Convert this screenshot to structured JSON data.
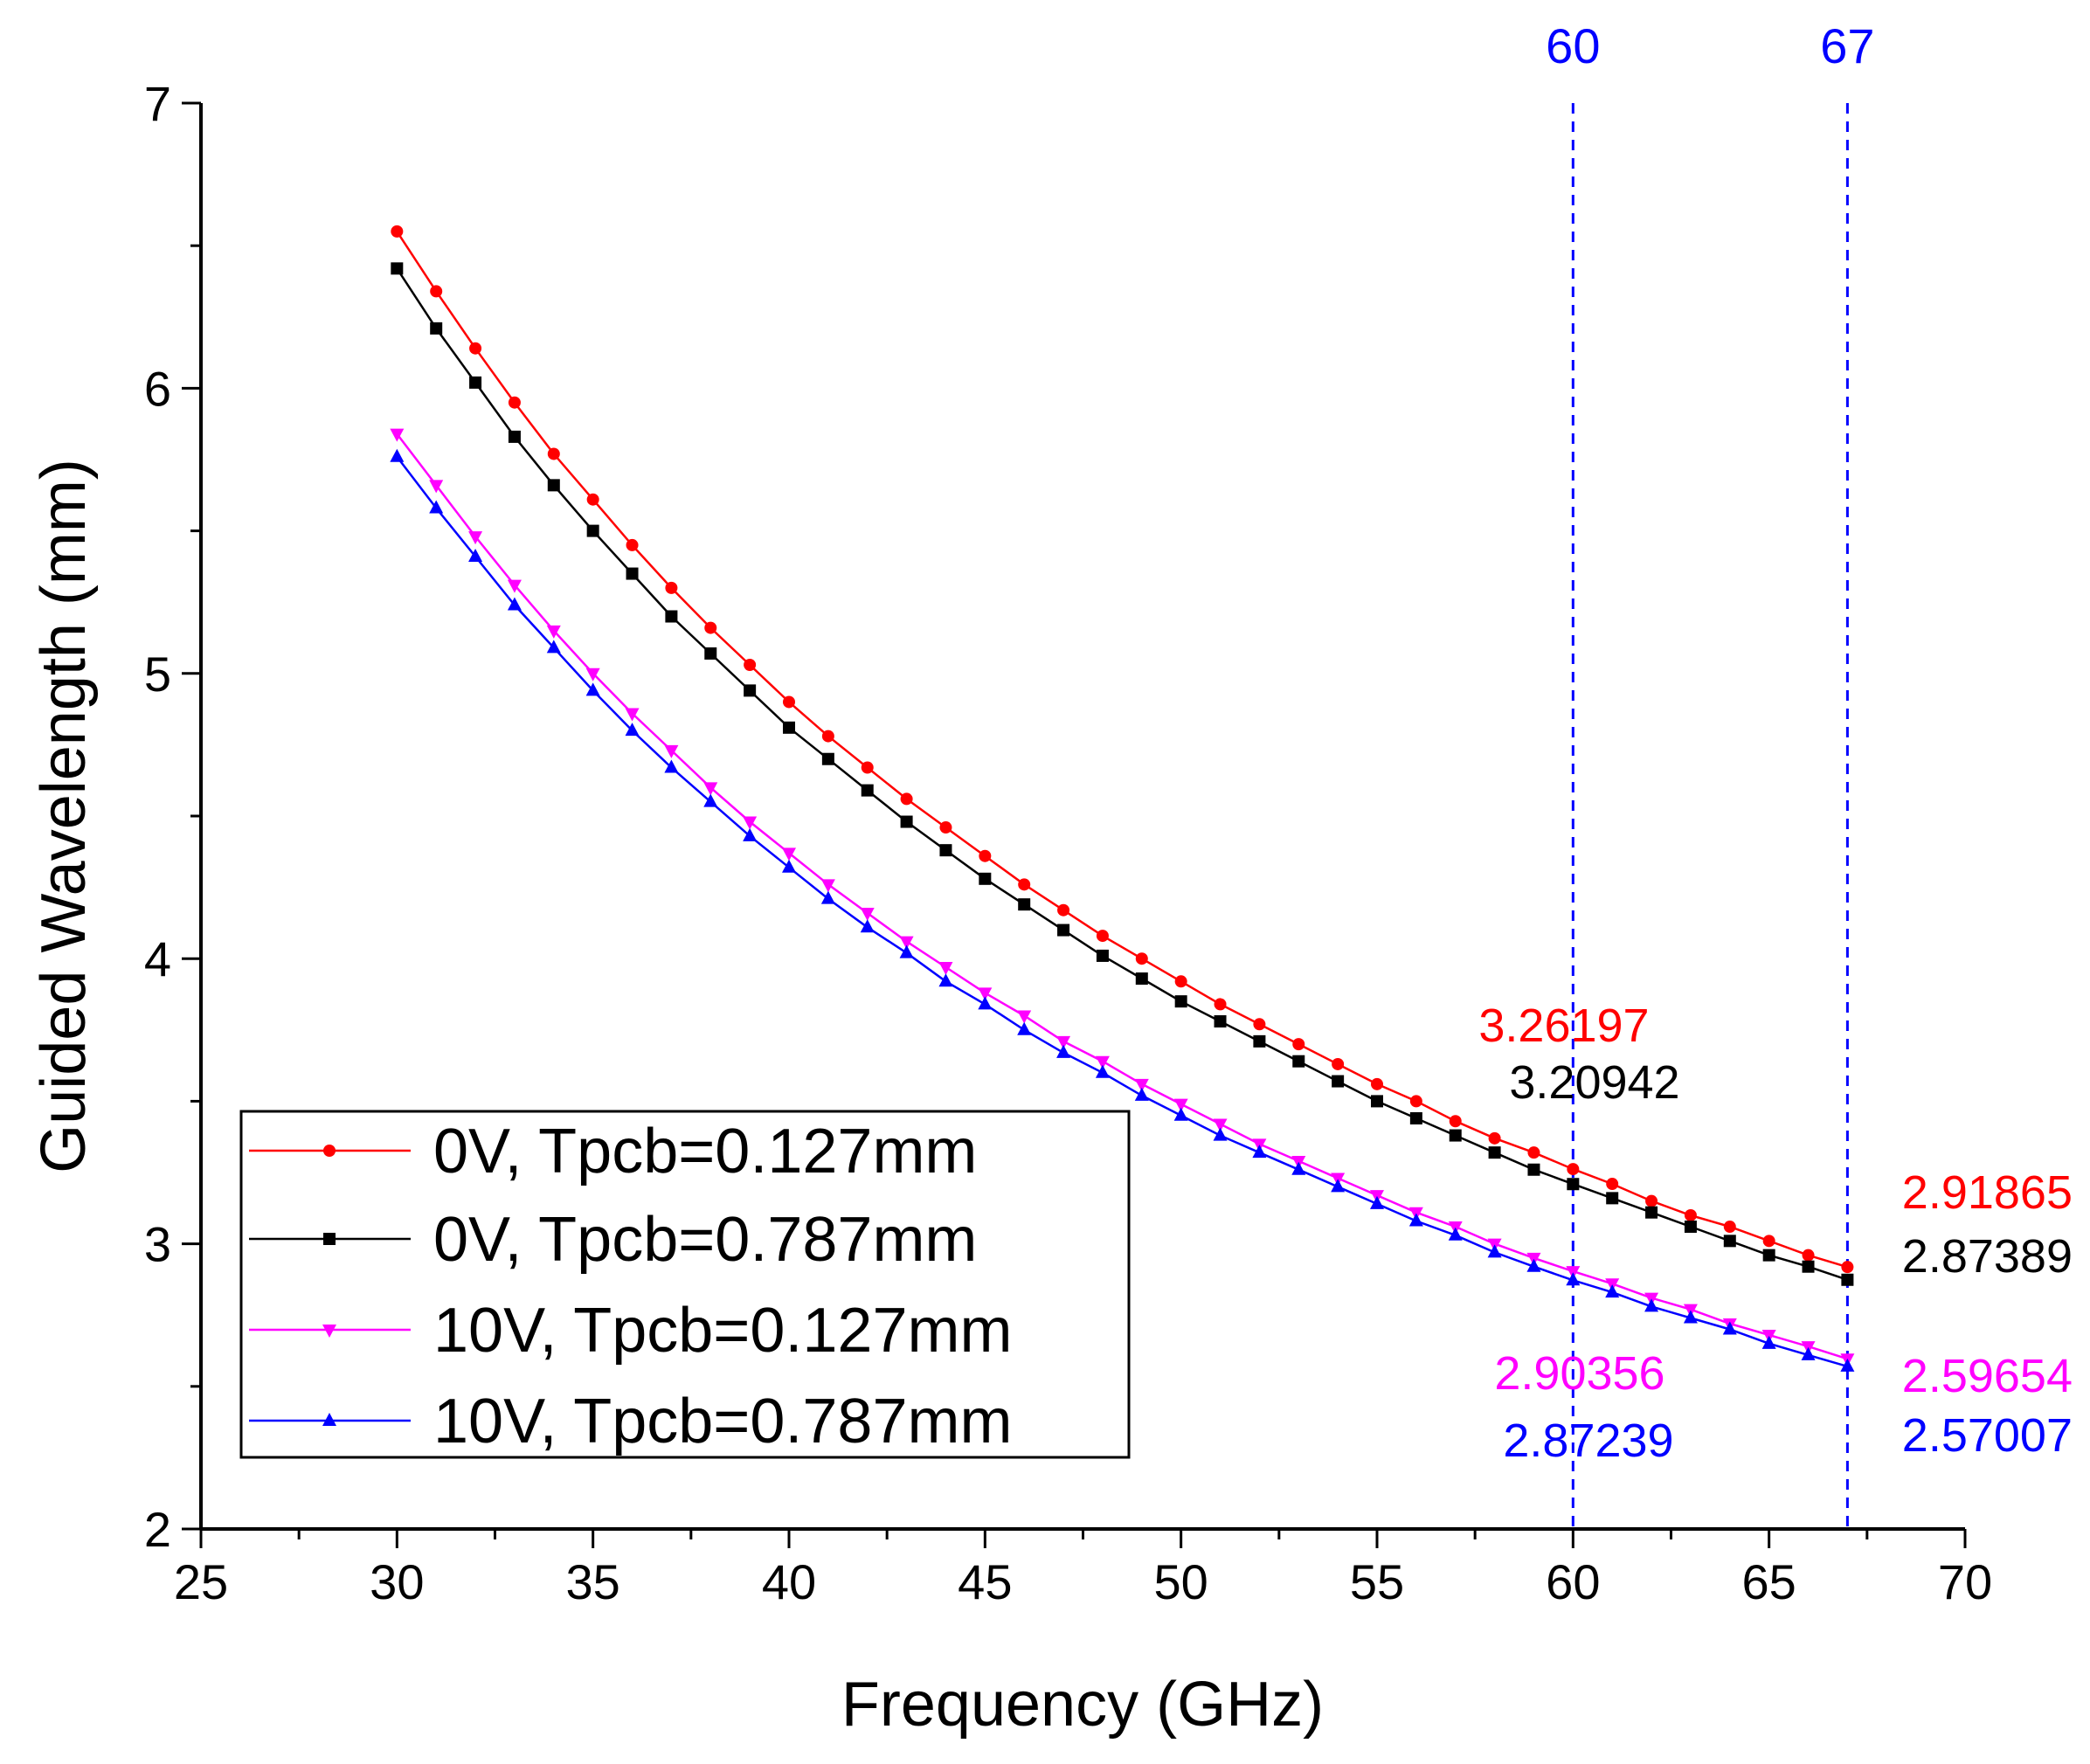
{
  "chart_data": {
    "type": "line",
    "xlabel": "Frequency (GHz)",
    "ylabel": "Guided Wavelength (mm)",
    "xlim": [
      25,
      70
    ],
    "ylim": [
      2,
      7
    ],
    "x_ticks": [
      "25",
      "30",
      "35",
      "40",
      "45",
      "50",
      "55",
      "60",
      "65",
      "70"
    ],
    "y_ticks": [
      "2",
      "3",
      "4",
      "5",
      "6",
      "7"
    ],
    "grid": false,
    "legend_position": "bottom-left",
    "x": [
      30,
      31,
      32,
      33,
      34,
      35,
      36,
      37,
      38,
      39,
      40,
      41,
      42,
      43,
      44,
      45,
      46,
      47,
      48,
      49,
      50,
      51,
      52,
      53,
      54,
      55,
      56,
      57,
      58,
      59,
      60,
      61,
      62,
      63,
      64,
      65,
      66,
      67
    ],
    "series": [
      {
        "name": "0V, Tpcb=0.127mm",
        "color": "#ff0000",
        "marker": "circle",
        "values": [
          6.55,
          6.34,
          6.14,
          5.95,
          5.77,
          5.61,
          5.45,
          5.3,
          5.16,
          5.03,
          4.9,
          4.78,
          4.67,
          4.56,
          4.46,
          4.36,
          4.26,
          4.17,
          4.08,
          4.0,
          3.92,
          3.84,
          3.77,
          3.7,
          3.63,
          3.56,
          3.5,
          3.43,
          3.37,
          3.32,
          3.26197,
          3.21,
          3.15,
          3.1,
          3.06,
          3.01,
          2.96,
          2.91865
        ]
      },
      {
        "name": "0V, Tpcb=0.787mm",
        "color": "#000000",
        "marker": "square",
        "values": [
          6.42,
          6.21,
          6.02,
          5.83,
          5.66,
          5.5,
          5.35,
          5.2,
          5.07,
          4.94,
          4.81,
          4.7,
          4.59,
          4.48,
          4.38,
          4.28,
          4.19,
          4.1,
          4.01,
          3.93,
          3.85,
          3.78,
          3.71,
          3.64,
          3.57,
          3.5,
          3.44,
          3.38,
          3.32,
          3.26,
          3.20942,
          3.16,
          3.11,
          3.06,
          3.01,
          2.96,
          2.92,
          2.87389
        ]
      },
      {
        "name": "10V, Tpcb=0.127mm",
        "color": "#ff00ff",
        "marker": "triangle-down",
        "values": [
          5.84,
          5.66,
          5.48,
          5.31,
          5.15,
          5.0,
          4.86,
          4.73,
          4.6,
          4.48,
          4.37,
          4.26,
          4.16,
          4.06,
          3.97,
          3.88,
          3.8,
          3.71,
          3.64,
          3.56,
          3.49,
          3.42,
          3.35,
          3.29,
          3.23,
          3.17,
          3.11,
          3.06,
          3.0,
          2.95,
          2.90356,
          2.86,
          2.81,
          2.77,
          2.72,
          2.68,
          2.64,
          2.59654
        ]
      },
      {
        "name": "10V, Tpcb=0.787mm",
        "color": "#0000ff",
        "marker": "triangle-up",
        "values": [
          5.76,
          5.58,
          5.41,
          5.24,
          5.09,
          4.94,
          4.8,
          4.67,
          4.55,
          4.43,
          4.32,
          4.21,
          4.11,
          4.02,
          3.92,
          3.84,
          3.75,
          3.67,
          3.6,
          3.52,
          3.45,
          3.38,
          3.32,
          3.26,
          3.2,
          3.14,
          3.08,
          3.03,
          2.97,
          2.92,
          2.87239,
          2.83,
          2.78,
          2.74,
          2.7,
          2.65,
          2.61,
          2.57007
        ]
      }
    ],
    "reference_lines": [
      {
        "x": 60,
        "label": "60",
        "color": "#0000ff",
        "style": "dashed"
      },
      {
        "x": 67,
        "label": "67",
        "color": "#0000ff",
        "style": "dashed"
      }
    ],
    "annotations": [
      {
        "text": "3.26197",
        "color": "#ff0000",
        "x": 60,
        "value": 3.26197
      },
      {
        "text": "3.20942",
        "color": "#000000",
        "x": 60,
        "value": 3.20942
      },
      {
        "text": "2.90356",
        "color": "#ff00ff",
        "x": 60,
        "value": 2.90356
      },
      {
        "text": "2.87239",
        "color": "#0000ff",
        "x": 60,
        "value": 2.87239
      },
      {
        "text": "2.91865",
        "color": "#ff0000",
        "x": 67,
        "value": 2.91865
      },
      {
        "text": "2.87389",
        "color": "#000000",
        "x": 67,
        "value": 2.87389
      },
      {
        "text": "2.59654",
        "color": "#ff00ff",
        "x": 67,
        "value": 2.59654
      },
      {
        "text": "2.57007",
        "color": "#0000ff",
        "x": 67,
        "value": 2.57007
      }
    ]
  }
}
